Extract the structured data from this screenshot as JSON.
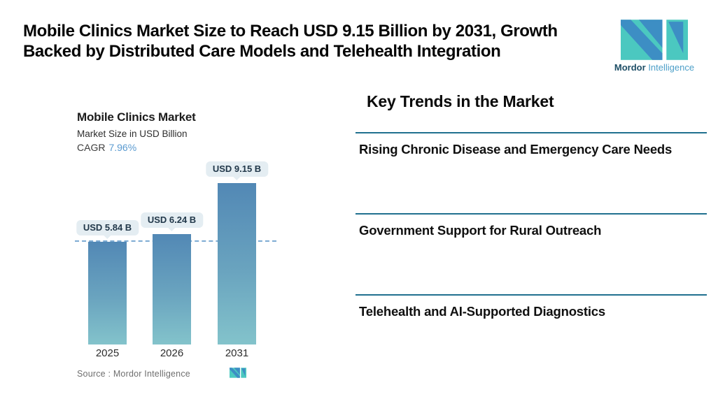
{
  "header": {
    "title_line1": "Mobile Clinics Market Size to Reach USD 9.15 Billion by 2031, Growth",
    "title_line2": "Backed by Distributed Care Models and Telehealth Integration",
    "brand": {
      "name_bold": "Mordor",
      "name_light": "Intelligence"
    }
  },
  "chart": {
    "title": "Mobile Clinics Market",
    "subtitle": "Market Size in USD Billion",
    "cagr_label": "CAGR",
    "cagr_value": "7.96%",
    "source_label": "Source :  Mordor Intelligence"
  },
  "chart_data": {
    "type": "bar",
    "title": "Mobile Clinics Market",
    "subtitle": "Market Size in USD Billion",
    "cagr": "7.96%",
    "categories": [
      "2025",
      "2026",
      "2031"
    ],
    "values": [
      5.84,
      6.24,
      9.15
    ],
    "value_labels": [
      "USD 5.84 B",
      "USD 6.24 B",
      "USD 9.15 B"
    ],
    "ylabel": "Market Size in USD Billion",
    "ylim": [
      0,
      9.15
    ],
    "reference_line": 5.84,
    "grid": false,
    "legend": "none",
    "bar_gradient_top": "#5288b5",
    "bar_gradient_bottom": "#83c3cb",
    "reference_line_color": "#7dabd3",
    "source": "Mordor Intelligence"
  },
  "trends": {
    "heading": "Key Trends in the Market",
    "items": [
      {
        "label": "Rising Chronic Disease and Emergency Care Needs"
      },
      {
        "label": "Government Support for Rural Outreach"
      },
      {
        "label": "Telehealth and AI-Supported Diagnostics"
      }
    ]
  },
  "colors": {
    "brand_teal": "#4bc8c0",
    "brand_blue": "#3d8ec4",
    "brand_navy": "#1d4e66",
    "divider": "#20708f",
    "cagr_accent": "#5b9bd1",
    "tooltip_bg": "#e4edf2"
  }
}
